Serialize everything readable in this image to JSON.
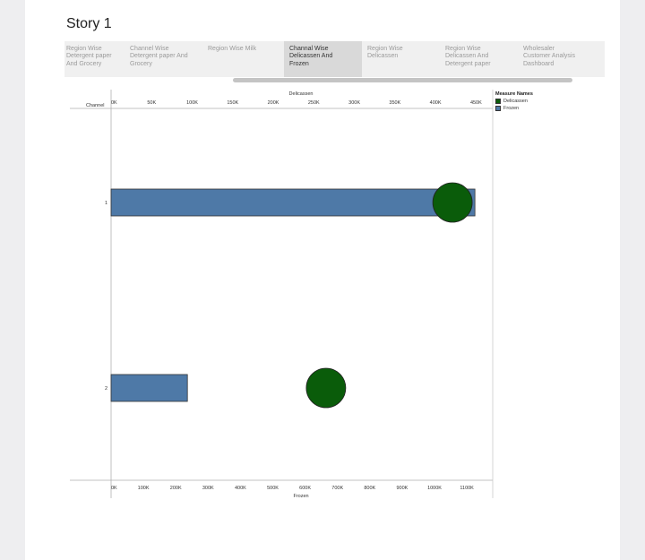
{
  "story": {
    "title": "Story 1"
  },
  "tabs": [
    {
      "label": "Region Wise\nDetergent paper\nAnd Grocery",
      "active": false
    },
    {
      "label": "Channel Wise\nDetergent paper And\nGrocery",
      "active": false
    },
    {
      "label": "Region Wise Milk",
      "active": false
    },
    {
      "label": "Channal Wise\nDelicassen And\nFrozen",
      "active": true
    },
    {
      "label": "Region Wise\nDelicassen",
      "active": false
    },
    {
      "label": "Region Wise\nDelicassen And\nDetergent paper",
      "active": false
    },
    {
      "label": "Wholesaler\nCustomer Analysis\nDashboard",
      "active": false
    }
  ],
  "legend": {
    "title": "Measure Names",
    "items": [
      {
        "label": "Delicassen",
        "color": "#0a5c0a"
      },
      {
        "label": "Frozen",
        "color": "#4e79a7"
      }
    ]
  },
  "chart_data": {
    "type": "bar",
    "title": "",
    "row_header": "Channel",
    "categories": [
      "1",
      "2"
    ],
    "top_axis": {
      "label": "Delicassen",
      "ticks": [
        "0K",
        "50K",
        "100K",
        "150K",
        "200K",
        "250K",
        "300K",
        "350K",
        "400K",
        "450K"
      ],
      "range": [
        0,
        475000
      ]
    },
    "bottom_axis": {
      "label": "Frozen",
      "ticks": [
        "0K",
        "100K",
        "200K",
        "300K",
        "400K",
        "500K",
        "600K",
        "700K",
        "800K",
        "900K",
        "1000K",
        "1100K"
      ],
      "range": [
        0,
        1180000
      ]
    },
    "series": [
      {
        "name": "Frozen",
        "kind": "bar",
        "axis": "bottom",
        "color": "#4e79a7",
        "values": [
          1125000,
          236000
        ]
      },
      {
        "name": "Delicassen",
        "kind": "circle",
        "axis": "top",
        "color": "#0a5c0a",
        "values": [
          421000,
          265000
        ]
      }
    ]
  }
}
